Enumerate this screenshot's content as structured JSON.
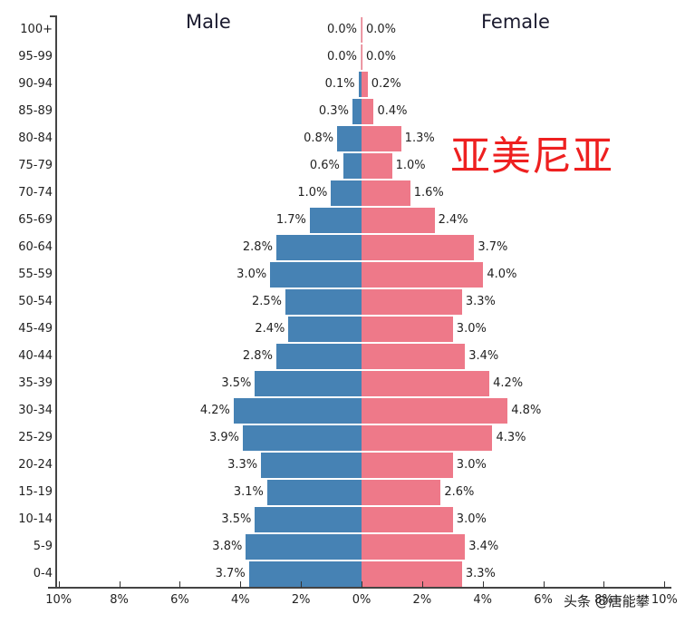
{
  "chart_data": {
    "type": "bar",
    "subtype": "population-pyramid",
    "title": "亚美尼亚",
    "xlabel": "",
    "ylabel": "",
    "xlim": [
      -10,
      10
    ],
    "x_ticks": [
      "10%",
      "8%",
      "6%",
      "4%",
      "2%",
      "0%",
      "2%",
      "4%",
      "6%",
      "8%",
      "10%"
    ],
    "categories": [
      "100+",
      "95-99",
      "90-94",
      "85-89",
      "80-84",
      "75-79",
      "70-74",
      "65-69",
      "60-64",
      "55-59",
      "50-54",
      "45-49",
      "40-44",
      "35-39",
      "30-34",
      "25-29",
      "20-24",
      "15-19",
      "10-14",
      "5-9",
      "0-4"
    ],
    "series": [
      {
        "name": "Male",
        "color": "#4682b4",
        "values": [
          0.0,
          0.0,
          0.1,
          0.3,
          0.8,
          0.6,
          1.0,
          1.7,
          2.8,
          3.0,
          2.5,
          2.4,
          2.8,
          3.5,
          4.2,
          3.9,
          3.3,
          3.1,
          3.5,
          3.8,
          3.7
        ]
      },
      {
        "name": "Female",
        "color": "#ee7989",
        "values": [
          0.0,
          0.0,
          0.2,
          0.4,
          1.3,
          1.0,
          1.6,
          2.4,
          3.7,
          4.0,
          3.3,
          3.0,
          3.4,
          4.2,
          4.8,
          4.3,
          3.0,
          2.6,
          3.0,
          3.4,
          3.3
        ]
      }
    ],
    "legend": {
      "left_title": "Male",
      "right_title": "Female",
      "position": "top"
    },
    "grid": false
  },
  "labels": {
    "male_title": "Male",
    "female_title": "Female",
    "country": "亚美尼亚",
    "watermark": "头条 @唐能攀"
  }
}
